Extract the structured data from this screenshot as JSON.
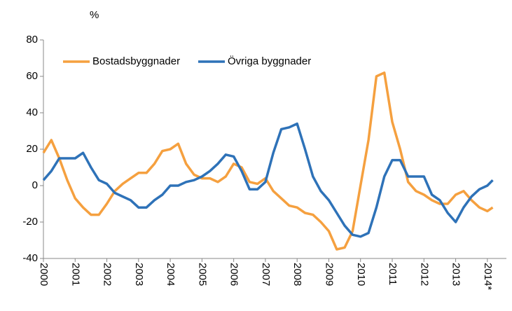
{
  "chart_data": {
    "type": "line",
    "unit_label": "%",
    "x": [
      2000.0,
      2000.25,
      2000.5,
      2000.75,
      2001.0,
      2001.25,
      2001.5,
      2001.75,
      2002.0,
      2002.25,
      2002.5,
      2002.75,
      2003.0,
      2003.25,
      2003.5,
      2003.75,
      2004.0,
      2004.25,
      2004.5,
      2004.75,
      2005.0,
      2005.25,
      2005.5,
      2005.75,
      2006.0,
      2006.25,
      2006.5,
      2006.75,
      2007.0,
      2007.25,
      2007.5,
      2007.75,
      2008.0,
      2008.25,
      2008.5,
      2008.75,
      2009.0,
      2009.25,
      2009.5,
      2009.75,
      2010.0,
      2010.25,
      2010.5,
      2010.75,
      2011.0,
      2011.25,
      2011.5,
      2011.75,
      2012.0,
      2012.25,
      2012.5,
      2012.75,
      2013.0,
      2013.25,
      2013.5,
      2013.75,
      2014.0,
      2014.17
    ],
    "series": [
      {
        "name": "Bostadsbyggnader",
        "color": "#f5a03f",
        "values": [
          18,
          25,
          15,
          3,
          -7,
          -12,
          -16,
          -16,
          -10,
          -3,
          1,
          4,
          7,
          7,
          12,
          19,
          20,
          23,
          12,
          6,
          4,
          4,
          2,
          5,
          12,
          10,
          2,
          1,
          4,
          -3,
          -7,
          -11,
          -12,
          -15,
          -16,
          -20,
          -25,
          -35,
          -34,
          -25,
          0,
          25,
          60,
          62,
          35,
          20,
          2,
          -3,
          -5,
          -8,
          -10,
          -10,
          -5,
          -3,
          -8,
          -12,
          -14,
          -12
        ]
      },
      {
        "name": "Övriga byggnader",
        "color": "#2e72b8",
        "values": [
          3,
          8,
          15,
          15,
          15,
          18,
          10,
          3,
          1,
          -4,
          -6,
          -8,
          -12,
          -12,
          -8,
          -5,
          0,
          0,
          2,
          3,
          5,
          8,
          12,
          17,
          16,
          8,
          -2,
          -2,
          2,
          18,
          31,
          32,
          34,
          20,
          5,
          -3,
          -8,
          -15,
          -22,
          -27,
          -28,
          -26,
          -12,
          5,
          14,
          14,
          5,
          5,
          5,
          -5,
          -8,
          -15,
          -20,
          -12,
          -6,
          -2,
          0,
          3
        ]
      }
    ],
    "xlim": [
      2000,
      2014.6
    ],
    "xticks": [
      2000,
      2001,
      2002,
      2003,
      2004,
      2005,
      2006,
      2007,
      2008,
      2009,
      2010,
      2011,
      2012,
      2013,
      {
        "value": 2014,
        "label": "2014*"
      }
    ],
    "ylim": [
      -40,
      80
    ],
    "yticks": [
      -40,
      -20,
      0,
      20,
      40,
      60,
      80
    ],
    "grid": false,
    "legend": "top-left"
  }
}
